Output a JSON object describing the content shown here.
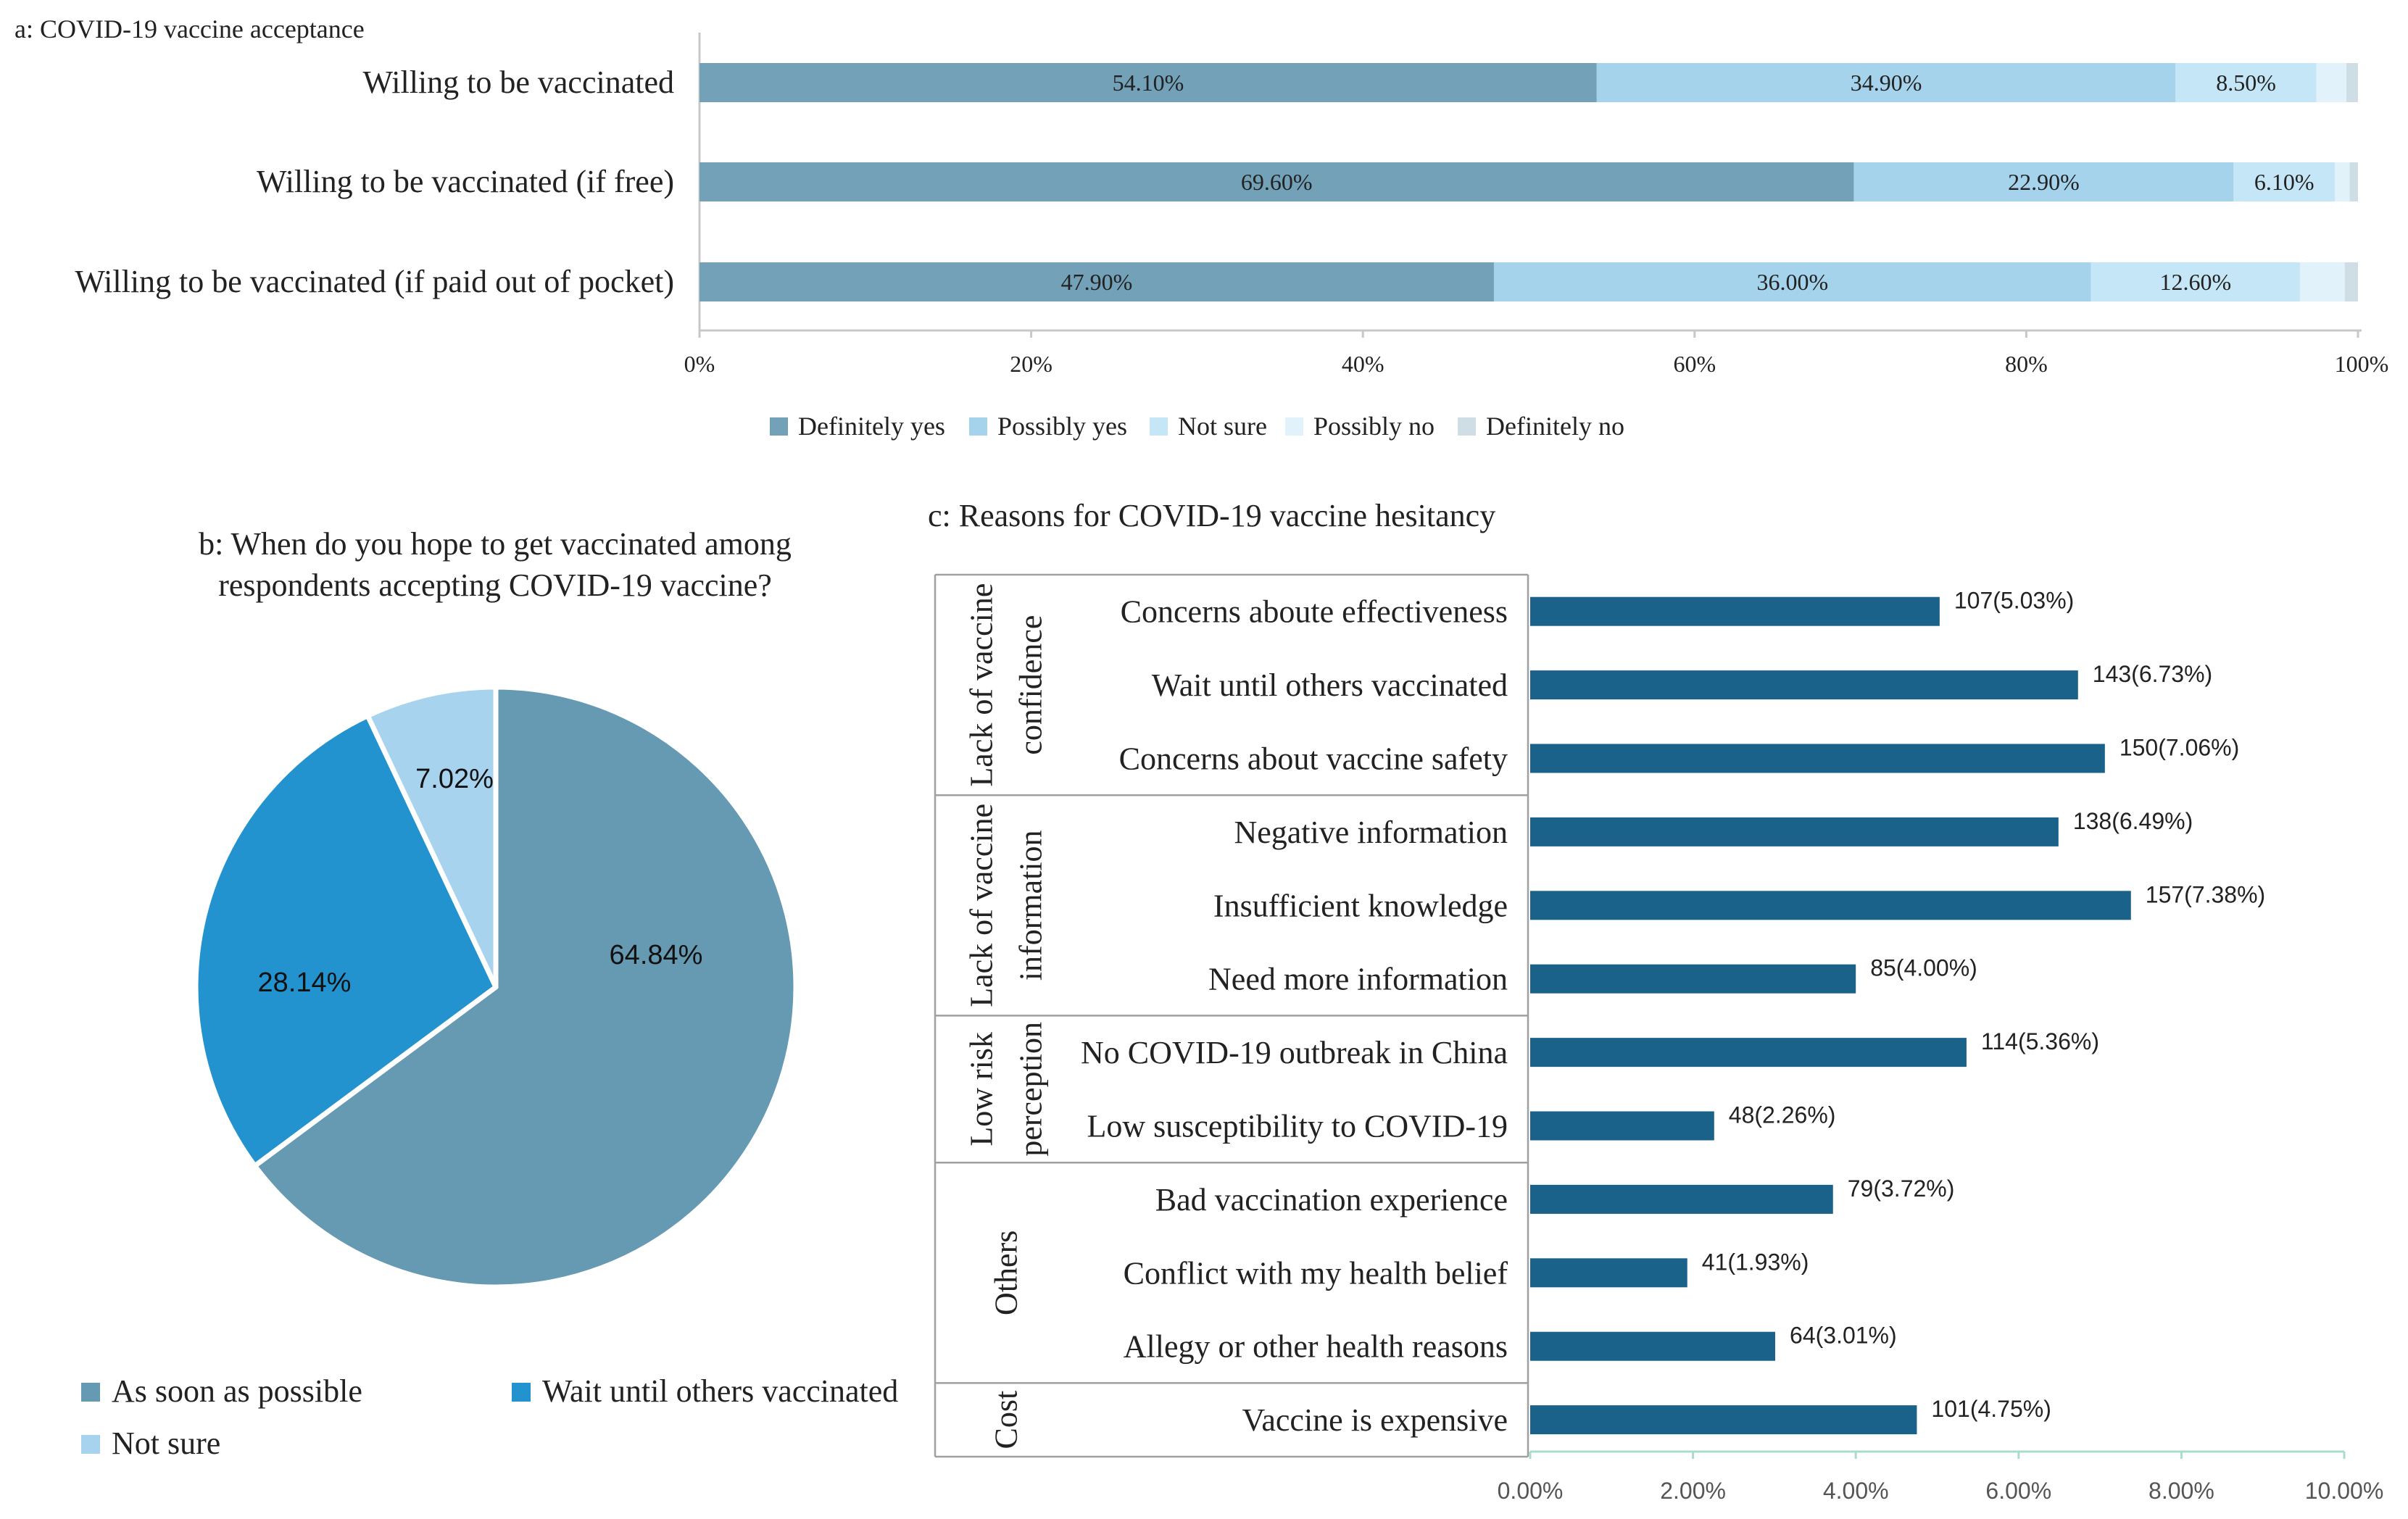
{
  "colors": {
    "definitely_yes": "#72a1b8",
    "possibly_yes": "#a5d3ec",
    "not_sure": "#c5e6f6",
    "possibly_no": "#e2f2fb",
    "definitely_no": "#cfdde4",
    "pie_soon": "#6699b2",
    "pie_wait": "#2393cf",
    "pie_unsure": "#a7d3ee",
    "hbar": "#1a6289",
    "axis": "#c8c8c8",
    "text": "#222222",
    "c_axis": "#a9dccd"
  },
  "chart_data": [
    {
      "type": "bar",
      "orientation": "horizontal",
      "stacked": true,
      "title": "a: COVID-19 vaccine acceptance",
      "categories": [
        "Willing to be vaccinated",
        "Willing to be vaccinated (if free)",
        "Willing to be vaccinated (if paid out of pocket)"
      ],
      "series": [
        {
          "name": "Definitely yes",
          "values": [
            54.1,
            69.6,
            47.9
          ],
          "labels": [
            "54.10%",
            "69.60%",
            "47.90%"
          ]
        },
        {
          "name": "Possibly yes",
          "values": [
            34.9,
            22.9,
            36.0
          ],
          "labels": [
            "34.90%",
            "22.90%",
            "36.00%"
          ]
        },
        {
          "name": "Not sure",
          "values": [
            8.5,
            6.1,
            12.6
          ],
          "labels": [
            "8.50%",
            "6.10%",
            "12.60%"
          ]
        },
        {
          "name": "Possibly no",
          "values": [
            1.8,
            0.9,
            2.7
          ],
          "labels": [
            "",
            "",
            ""
          ]
        },
        {
          "name": "Definitely no",
          "values": [
            0.7,
            0.5,
            0.8
          ],
          "labels": [
            "",
            "",
            ""
          ]
        }
      ],
      "xlim": [
        0,
        100
      ],
      "xticks": [
        "0%",
        "20%",
        "40%",
        "60%",
        "80%",
        "100%"
      ],
      "legend": "bottom"
    },
    {
      "type": "pie",
      "title_lines": [
        "b: When do you hope to get vaccinated among",
        "respondents accepting COVID-19 vaccine?"
      ],
      "slices": [
        {
          "name": "As soon as possible",
          "value": 64.84,
          "label": "64.84%"
        },
        {
          "name": "Wait until others vaccinated",
          "value": 28.14,
          "label": "28.14%"
        },
        {
          "name": "Not sure",
          "value": 7.02,
          "label": "7.02%"
        }
      ],
      "legend": "bottom"
    },
    {
      "type": "bar",
      "orientation": "horizontal",
      "title": "c: Reasons for COVID-19 vaccine hesitancy",
      "groups": [
        {
          "lines": [
            "Lack of vaccine",
            "confidence"
          ],
          "size": 3
        },
        {
          "lines": [
            "Lack of vaccine",
            "information"
          ],
          "size": 3
        },
        {
          "lines": [
            "Low risk",
            "perception"
          ],
          "size": 2
        },
        {
          "lines": [
            "Others"
          ],
          "size": 3
        },
        {
          "lines": [
            "Cost"
          ],
          "size": 1
        }
      ],
      "categories": [
        "Concerns aboute effectiveness",
        "Wait until others vaccinated",
        "Concerns about vaccine safety",
        "Negative information",
        "Insufficient knowledge",
        "Need more information",
        "No COVID-19 outbreak in China",
        "Low susceptibility to COVID-19",
        "Bad vaccination experience",
        "Conflict with my health belief",
        "Allegy or other health reasons",
        "Vaccine is expensive"
      ],
      "values": [
        5.03,
        6.73,
        7.06,
        6.49,
        7.38,
        4.0,
        5.36,
        2.26,
        3.72,
        1.93,
        3.01,
        4.75
      ],
      "labels": [
        "107(5.03%)",
        "143(6.73%)",
        "150(7.06%)",
        "138(6.49%)",
        "157(7.38%)",
        "85(4.00%)",
        "114(5.36%)",
        "48(2.26%)",
        "79(3.72%)",
        "41(1.93%)",
        "64(3.01%)",
        "101(4.75%)"
      ],
      "xlim": [
        0,
        10
      ],
      "xticks": [
        "0.00%",
        "2.00%",
        "4.00%",
        "6.00%",
        "8.00%",
        "10.00%"
      ]
    }
  ]
}
